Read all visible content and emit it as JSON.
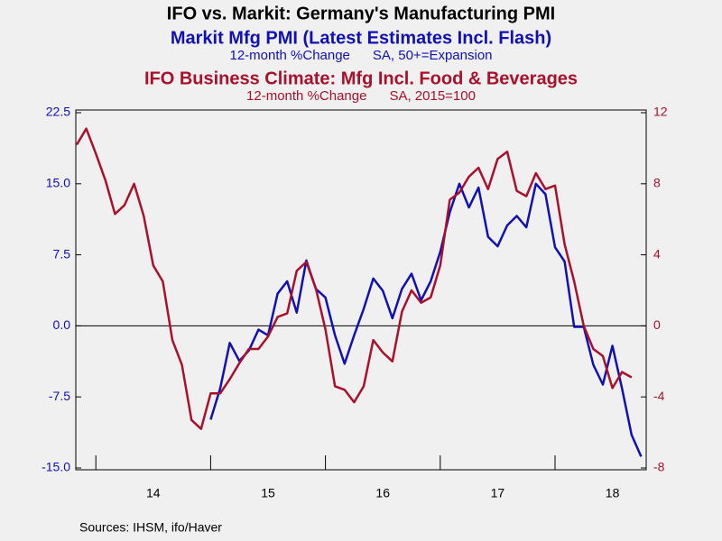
{
  "chart_data": {
    "type": "line",
    "title": "IFO vs. Markit: Germany's Manufacturing PMI",
    "source": "Sources:  IHSM, ifo/Haver",
    "categories": [
      null,
      null,
      null,
      null,
      null,
      null,
      null,
      null,
      "14",
      null,
      null,
      null,
      null,
      null,
      null,
      null,
      null,
      null,
      null,
      null,
      "15",
      null,
      null,
      null,
      null,
      null,
      null,
      null,
      null,
      null,
      null,
      null,
      "16",
      null,
      null,
      null,
      null,
      null,
      null,
      null,
      null,
      null,
      null,
      null,
      "17",
      null,
      null,
      null,
      null,
      null,
      null,
      null,
      null,
      null,
      null,
      null,
      "18",
      null,
      null,
      null
    ],
    "series": [
      {
        "name": "Markit Mfg PMI (Latest Estimates Incl. Flash)",
        "subtitle": "12-month %Change      SA, 50+=Expansion",
        "color": "#1010b4",
        "axis": "y",
        "values": [
          null,
          null,
          null,
          null,
          null,
          null,
          null,
          null,
          null,
          null,
          null,
          null,
          null,
          null,
          -9.9,
          -6.6,
          -1.8,
          -3.7,
          -2.6,
          -0.4,
          -1.0,
          3.4,
          4.7,
          1.4,
          6.9,
          3.9,
          3.0,
          -1.0,
          -4.0,
          -1.0,
          1.8,
          5.0,
          3.7,
          0.8,
          3.9,
          5.5,
          2.7,
          4.7,
          7.8,
          12.0,
          15.0,
          12.5,
          14.6,
          9.4,
          8.4,
          10.6,
          11.6,
          10.4,
          15.0,
          13.9,
          8.3,
          6.8,
          -0.1,
          -0.1,
          -4.1,
          -6.2,
          -2.1,
          -6.6,
          -11.5,
          -13.8
        ]
      },
      {
        "name": "IFO Business Climate: Mfg Incl. Food & Beverages",
        "subtitle": "12-month %Change      SA, 2015=100",
        "color": "#a8102c",
        "axis": "y2",
        "values": [
          10.2,
          11.1,
          9.7,
          8.2,
          6.3,
          6.8,
          8.0,
          6.2,
          3.4,
          2.5,
          -0.8,
          -2.2,
          -5.3,
          -5.8,
          -3.8,
          -3.8,
          -3.0,
          -2.1,
          -1.3,
          -1.3,
          -0.6,
          0.5,
          0.7,
          3.1,
          3.6,
          2.1,
          -0.2,
          -3.4,
          -3.6,
          -4.3,
          -3.4,
          -0.8,
          -1.5,
          -2.0,
          0.8,
          2.0,
          1.3,
          1.6,
          3.4,
          7.1,
          7.5,
          8.4,
          8.9,
          7.7,
          9.4,
          9.8,
          7.6,
          7.3,
          8.6,
          7.7,
          7.9,
          4.6,
          2.5,
          0.0,
          -1.3,
          -1.7,
          -3.5,
          -2.6,
          -2.9,
          null
        ]
      }
    ],
    "ylim": [
      -15,
      22.5
    ],
    "yticks": [
      {
        "value": -15,
        "label": "-15.0"
      },
      -7.5,
      {
        "value": 0,
        "label": "0.0"
      },
      7.5,
      {
        "value": 15,
        "label": "15.0"
      },
      22.5
    ],
    "y2lim": [
      -8,
      12
    ],
    "y2ticks": [
      -8,
      -4,
      0,
      4,
      8,
      12
    ]
  }
}
